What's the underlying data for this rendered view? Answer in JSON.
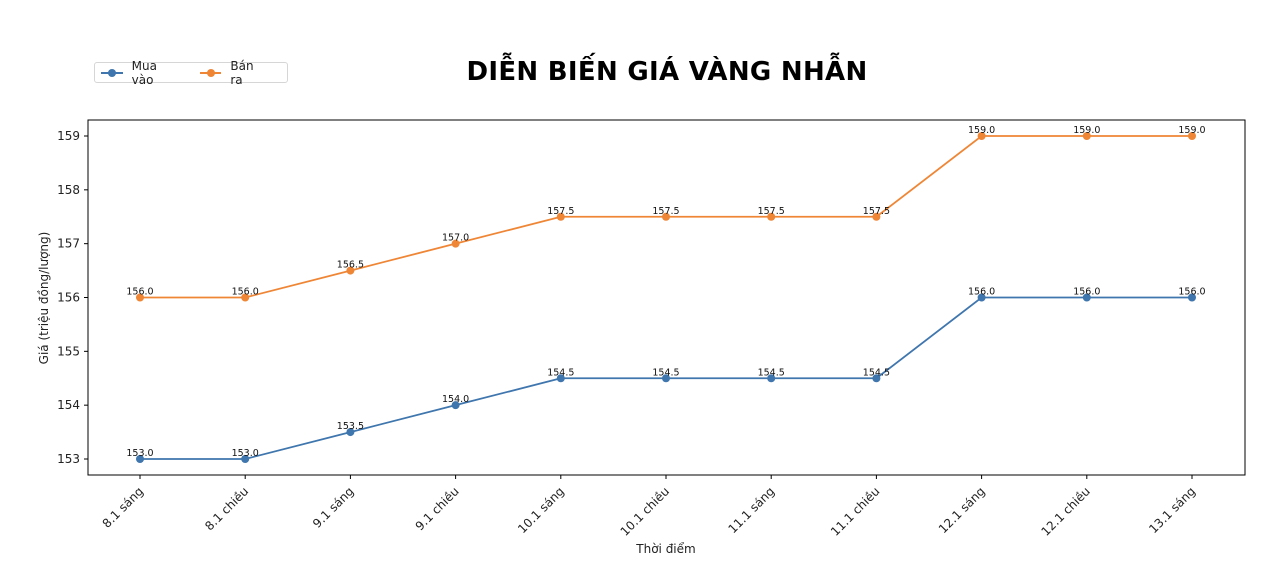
{
  "chart_data": {
    "type": "line",
    "title": "DIỄN BIẾN GIÁ VÀNG NHẪN",
    "xlabel": "Thời điểm",
    "ylabel": "Giá (triệu đồng/lượng)",
    "categories": [
      "8.1 sáng",
      "8.1 chiều",
      "9.1 sáng",
      "9.1 chiều",
      "10.1 sáng",
      "10.1 chiều",
      "11.1 sáng",
      "11.1 chiều",
      "12.1 sáng",
      "12.1 chiều",
      "13.1 sáng"
    ],
    "series": [
      {
        "name": "Mua vào",
        "color": "#3f76ae",
        "values": [
          153.0,
          153.0,
          153.5,
          154.0,
          154.5,
          154.5,
          154.5,
          154.5,
          156.0,
          156.0,
          156.0
        ]
      },
      {
        "name": "Bán ra",
        "color": "#ef8636",
        "values": [
          156.0,
          156.0,
          156.5,
          157.0,
          157.5,
          157.5,
          157.5,
          157.5,
          159.0,
          159.0,
          159.0
        ]
      }
    ],
    "yticks": [
      153,
      154,
      155,
      156,
      157,
      158,
      159
    ],
    "ylim": [
      152.7,
      159.3
    ],
    "grid": false,
    "legend_position": "upper left (outside, above plot)",
    "data_labels": true
  },
  "legend": {
    "items": [
      {
        "label": "Mua vào",
        "color": "#3f76ae"
      },
      {
        "label": "Bán ra",
        "color": "#ef8636"
      }
    ]
  }
}
